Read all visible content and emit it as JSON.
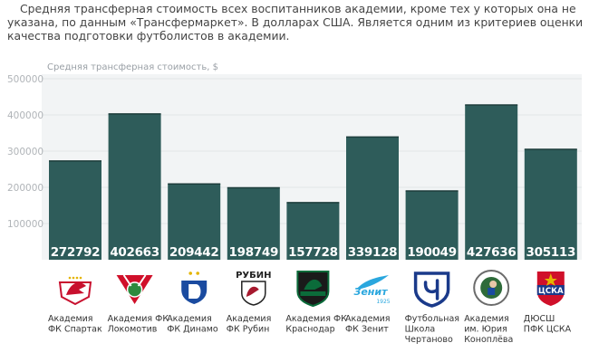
{
  "intro_text": "Средняя трансферная стоимость всех воспитанников академии, кроме тех у которых она не указана, по данным «Трансфермаркет». В долларах США. Является одним из критериев оценки качества подготовки футболистов в академии.",
  "colors": {
    "bar": "#2e5c5a",
    "panel": "#f2f4f5",
    "grid": "#e2e6e8"
  },
  "chart_data": {
    "type": "bar",
    "title": "Средняя трансферная стоимость, $",
    "ylim": [
      0,
      500000
    ],
    "yticks": [
      "500000",
      "400000",
      "300000",
      "200000",
      "100000"
    ],
    "categories": [
      [
        "Академия",
        "ФК Спартак"
      ],
      [
        "Академия ФК",
        "Локомотив"
      ],
      [
        "Академия",
        "ФК Динамо"
      ],
      [
        "Академия",
        "ФК Рубин"
      ],
      [
        "Академия ФК",
        "Краснодар"
      ],
      [
        "Академия",
        "ФК Зенит"
      ],
      [
        "Футбольная",
        "Школа",
        "Чертаново"
      ],
      [
        "Академия",
        "им. Юрия",
        "Коноплёва"
      ],
      [
        "ДЮСШ",
        "ПФК ЦСКА"
      ]
    ],
    "values": [
      272792,
      402663,
      209442,
      198749,
      157728,
      339128,
      190049,
      427636,
      305113
    ],
    "logos": [
      {
        "icon": "spartak-logo-icon"
      },
      {
        "icon": "lokomotiv-logo-icon"
      },
      {
        "icon": "dinamo-logo-icon"
      },
      {
        "icon": "rubin-logo-icon",
        "text": "РУБИН"
      },
      {
        "icon": "krasnodar-logo-icon"
      },
      {
        "icon": "zenit-logo-icon",
        "text": "Зенит",
        "sub": "1925"
      },
      {
        "icon": "chertanovo-logo-icon"
      },
      {
        "icon": "konoplev-logo-icon"
      },
      {
        "icon": "cska-logo-icon",
        "text": "ЦСКА"
      }
    ]
  }
}
